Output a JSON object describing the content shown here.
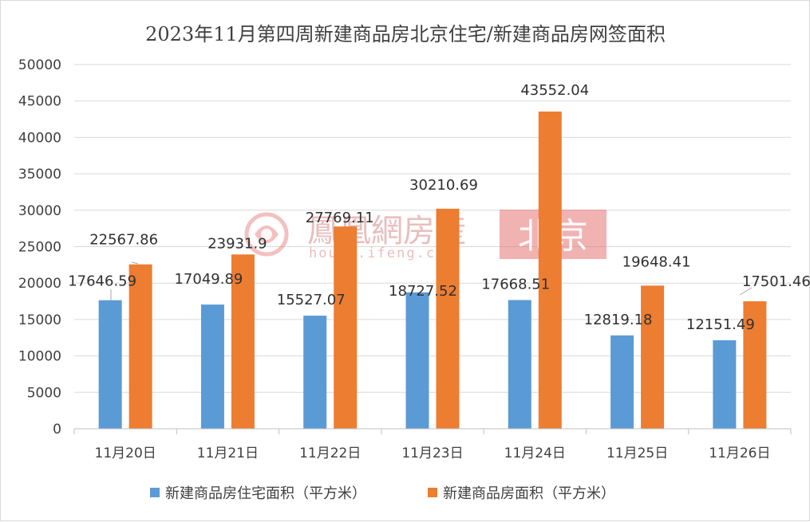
{
  "chart_data": {
    "type": "bar",
    "title": "2023年11月第四周新建商品房北京住宅/新建商品房网签面积",
    "categories": [
      "11月20日",
      "11月21日",
      "11月22日",
      "11月23日",
      "11月24日",
      "11月25日",
      "11月26日"
    ],
    "series": [
      {
        "name": "新建商品房住宅面积（平方米）",
        "color": "#5B9BD5",
        "values": [
          17646.59,
          17049.89,
          15527.07,
          18727.52,
          17668.51,
          12819.18,
          12151.49
        ],
        "labels": [
          "17646.59",
          "17049.89",
          "15527.07",
          "18727.52",
          "17668.51",
          "12819.18",
          "12151.49"
        ]
      },
      {
        "name": "新建商品房面积（平方米）",
        "color": "#ED7D31",
        "values": [
          22567.86,
          23931.9,
          27769.11,
          30210.69,
          43552.04,
          19648.41,
          17501.46
        ],
        "labels": [
          "22567.86",
          "23931.9",
          "27769.11",
          "30210.69",
          "43552.04",
          "19648.41",
          "17501.46"
        ]
      }
    ],
    "ylim": [
      0,
      50000
    ],
    "yticks": [
      0,
      5000,
      10000,
      15000,
      20000,
      25000,
      30000,
      35000,
      40000,
      45000,
      50000
    ],
    "grid": true,
    "legend_position": "bottom"
  },
  "watermark": {
    "brand": "鳳凰網房産",
    "url": "house.ifeng.com",
    "city": "北京",
    "color": "#e57373"
  }
}
